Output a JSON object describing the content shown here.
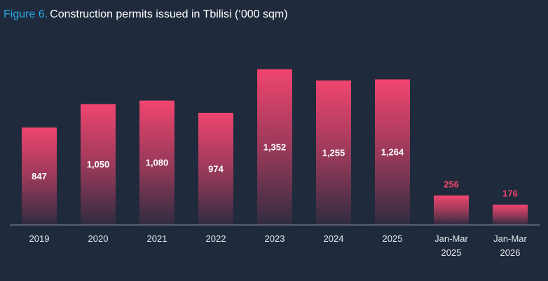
{
  "chart_data": {
    "type": "bar",
    "figure": "Figure 6.",
    "title": "Construction permits issued in Tbilisi (‘000 sqm)",
    "categories": [
      "2019",
      "2020",
      "2021",
      "2022",
      "2023",
      "2024",
      "2025",
      "Jan-Mar 2025",
      "Jan-Mar 2026"
    ],
    "values": [
      847,
      1050,
      1080,
      974,
      1352,
      1255,
      1264,
      256,
      176
    ],
    "value_labels": [
      "847",
      "1,050",
      "1,080",
      "974",
      "1,352",
      "1,255",
      "1,264",
      "256",
      "176"
    ],
    "color": "#f0456f",
    "ylim": [
      0,
      1400
    ],
    "grid": false
  }
}
